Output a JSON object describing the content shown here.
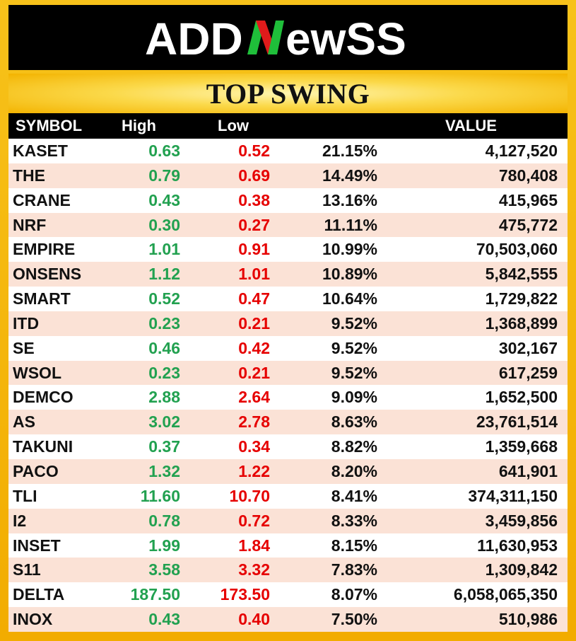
{
  "brand": {
    "logo_text": "ADDNewsS",
    "colors": {
      "green": "#1fbf3a",
      "red": "#e01b1b",
      "white": "#ffffff",
      "bar": "#000000"
    }
  },
  "title": "TOP SWING",
  "table": {
    "headers": {
      "symbol": "SYMBOL",
      "high": "High",
      "low": "Low",
      "pct": "",
      "value": "VALUE"
    },
    "rows": [
      {
        "symbol": "KASET",
        "high": "0.63",
        "low": "0.52",
        "pct": "21.15%",
        "value": "4,127,520"
      },
      {
        "symbol": "THE",
        "high": "0.79",
        "low": "0.69",
        "pct": "14.49%",
        "value": "780,408"
      },
      {
        "symbol": "CRANE",
        "high": "0.43",
        "low": "0.38",
        "pct": "13.16%",
        "value": "415,965"
      },
      {
        "symbol": "NRF",
        "high": "0.30",
        "low": "0.27",
        "pct": "11.11%",
        "value": "475,772"
      },
      {
        "symbol": "EMPIRE",
        "high": "1.01",
        "low": "0.91",
        "pct": "10.99%",
        "value": "70,503,060"
      },
      {
        "symbol": "ONSENS",
        "high": "1.12",
        "low": "1.01",
        "pct": "10.89%",
        "value": "5,842,555"
      },
      {
        "symbol": "SMART",
        "high": "0.52",
        "low": "0.47",
        "pct": "10.64%",
        "value": "1,729,822"
      },
      {
        "symbol": "ITD",
        "high": "0.23",
        "low": "0.21",
        "pct": "9.52%",
        "value": "1,368,899"
      },
      {
        "symbol": "SE",
        "high": "0.46",
        "low": "0.42",
        "pct": "9.52%",
        "value": "302,167"
      },
      {
        "symbol": "WSOL",
        "high": "0.23",
        "low": "0.21",
        "pct": "9.52%",
        "value": "617,259"
      },
      {
        "symbol": "DEMCO",
        "high": "2.88",
        "low": "2.64",
        "pct": "9.09%",
        "value": "1,652,500"
      },
      {
        "symbol": "AS",
        "high": "3.02",
        "low": "2.78",
        "pct": "8.63%",
        "value": "23,761,514"
      },
      {
        "symbol": "TAKUNI",
        "high": "0.37",
        "low": "0.34",
        "pct": "8.82%",
        "value": "1,359,668"
      },
      {
        "symbol": "PACO",
        "high": "1.32",
        "low": "1.22",
        "pct": "8.20%",
        "value": "641,901"
      },
      {
        "symbol": "TLI",
        "high": "11.60",
        "low": "10.70",
        "pct": "8.41%",
        "value": "374,311,150"
      },
      {
        "symbol": "I2",
        "high": "0.78",
        "low": "0.72",
        "pct": "8.33%",
        "value": "3,459,856"
      },
      {
        "symbol": "INSET",
        "high": "1.99",
        "low": "1.84",
        "pct": "8.15%",
        "value": "11,630,953"
      },
      {
        "symbol": "S11",
        "high": "3.58",
        "low": "3.32",
        "pct": "7.83%",
        "value": "1,309,842"
      },
      {
        "symbol": "DELTA",
        "high": "187.50",
        "low": "173.50",
        "pct": "8.07%",
        "value": "6,058,065,350"
      },
      {
        "symbol": "INOX",
        "high": "0.43",
        "low": "0.40",
        "pct": "7.50%",
        "value": "510,986"
      }
    ]
  }
}
